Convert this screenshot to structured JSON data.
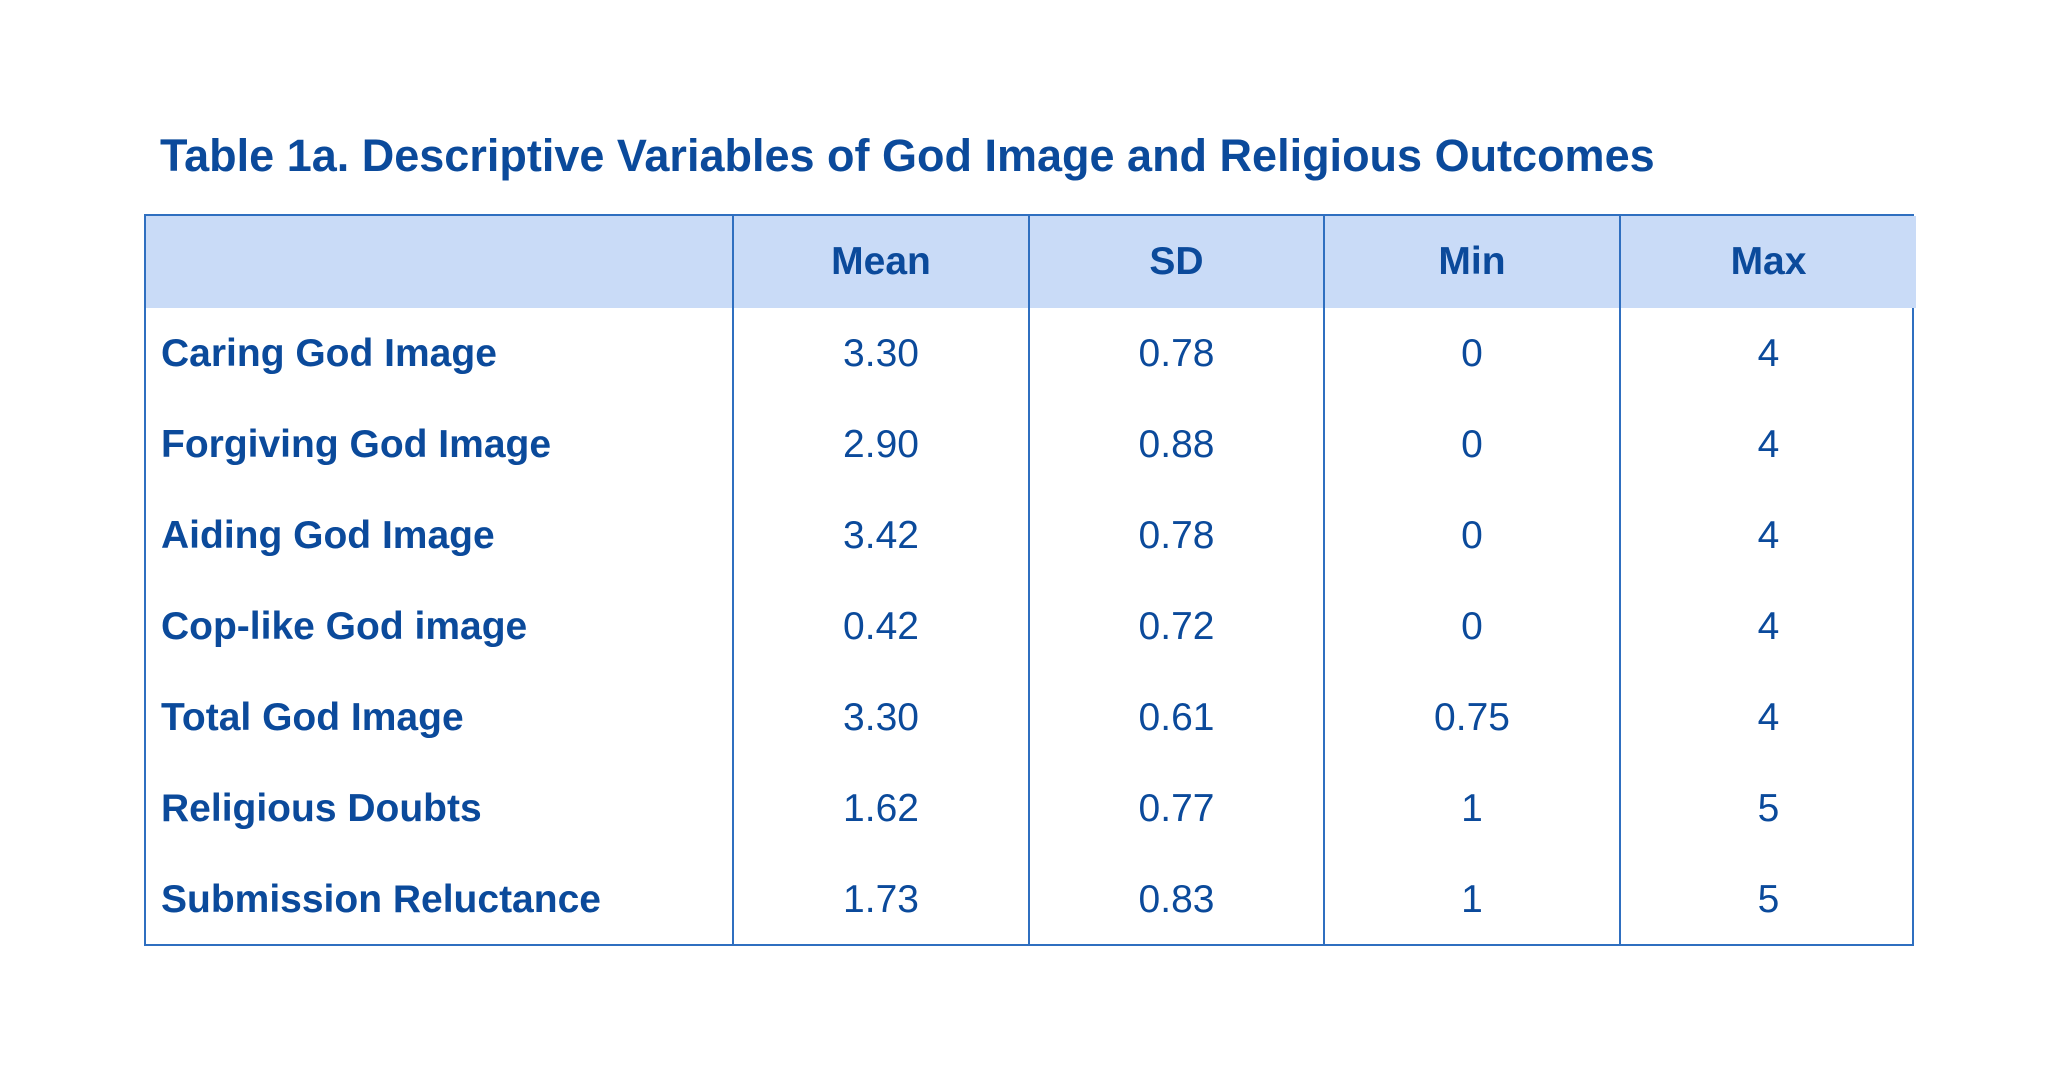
{
  "title": "Table 1a. Descriptive Variables of God Image and Religious Outcomes",
  "table": {
    "headers": [
      "",
      "Mean",
      "SD",
      "Min",
      "Max"
    ],
    "rows": [
      {
        "label": "Caring God Image",
        "mean": "3.30",
        "sd": "0.78",
        "min": "0",
        "max": "4"
      },
      {
        "label": "Forgiving God Image",
        "mean": "2.90",
        "sd": "0.88",
        "min": "0",
        "max": "4"
      },
      {
        "label": "Aiding God Image",
        "mean": "3.42",
        "sd": "0.78",
        "min": "0",
        "max": "4"
      },
      {
        "label": "Cop-like God image",
        "mean": "0.42",
        "sd": "0.72",
        "min": "0",
        "max": "4"
      },
      {
        "label": "Total God Image",
        "mean": "3.30",
        "sd": "0.61",
        "min": "0.75",
        "max": "4"
      },
      {
        "label": "Religious Doubts",
        "mean": "1.62",
        "sd": "0.77",
        "min": "1",
        "max": "5"
      },
      {
        "label": "Submission Reluctance",
        "mean": "1.73",
        "sd": "0.83",
        "min": "1",
        "max": "5"
      }
    ]
  },
  "colors": {
    "text": "#0b4a9b",
    "header_bg": "#c9dbf7",
    "border": "#2f6fc0"
  }
}
